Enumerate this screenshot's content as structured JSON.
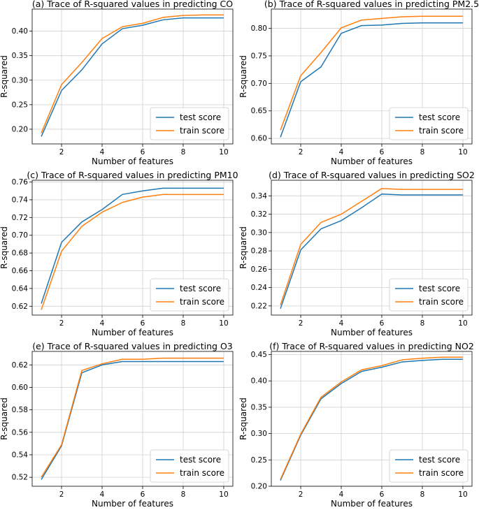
{
  "figure": {
    "colors": {
      "test": "#1f77b4",
      "train": "#ff7f0e",
      "grid": "#d0d0d0",
      "axis": "#000000"
    }
  },
  "chart_data": [
    {
      "type": "line",
      "title": "(a) Trace of R-squared values in predicting CO",
      "xlabel": "Number of features",
      "ylabel": "R-squared",
      "x": [
        1,
        2,
        3,
        4,
        5,
        6,
        7,
        8,
        9,
        10
      ],
      "xlim": [
        0.55,
        10.45
      ],
      "ylim": [
        0.17,
        0.445
      ],
      "xticks": [
        2,
        4,
        6,
        8,
        10
      ],
      "xtick_labels": [
        "2",
        "4",
        "6",
        "8",
        "10"
      ],
      "yticks": [
        0.2,
        0.25,
        0.3,
        0.35,
        0.4
      ],
      "ytick_labels": [
        "0.20",
        "0.25",
        "0.30",
        "0.35",
        "0.40"
      ],
      "legend_position": "lower-right",
      "series": [
        {
          "name": "test score",
          "color": "#1f77b4",
          "values": [
            0.185,
            0.279,
            0.321,
            0.374,
            0.405,
            0.412,
            0.423,
            0.427,
            0.427,
            0.427
          ]
        },
        {
          "name": "train score",
          "color": "#ff7f0e",
          "values": [
            0.192,
            0.291,
            0.336,
            0.385,
            0.409,
            0.416,
            0.428,
            0.432,
            0.433,
            0.433
          ]
        }
      ]
    },
    {
      "type": "line",
      "title": "(b) Trace of R-squared values in predicting PM2.5",
      "xlabel": "Number of features",
      "ylabel": "R-squared",
      "x": [
        1,
        2,
        3,
        4,
        5,
        6,
        7,
        8,
        9,
        10
      ],
      "xlim": [
        0.55,
        10.45
      ],
      "ylim": [
        0.59,
        0.835
      ],
      "xticks": [
        2,
        4,
        6,
        8,
        10
      ],
      "xtick_labels": [
        "2",
        "4",
        "6",
        "8",
        "10"
      ],
      "yticks": [
        0.6,
        0.65,
        0.7,
        0.75,
        0.8
      ],
      "ytick_labels": [
        "0.60",
        "0.65",
        "0.70",
        "0.75",
        "0.80"
      ],
      "legend_position": "lower-right",
      "series": [
        {
          "name": "test score",
          "color": "#1f77b4",
          "values": [
            0.602,
            0.703,
            0.73,
            0.791,
            0.805,
            0.806,
            0.809,
            0.81,
            0.81,
            0.81
          ]
        },
        {
          "name": "train score",
          "color": "#ff7f0e",
          "values": [
            0.615,
            0.714,
            0.756,
            0.801,
            0.815,
            0.818,
            0.821,
            0.822,
            0.822,
            0.822
          ]
        }
      ]
    },
    {
      "type": "line",
      "title": "(c) Trace of R-squared values in predicting PM10",
      "xlabel": "Number of features",
      "ylabel": "R-squared",
      "x": [
        1,
        2,
        3,
        4,
        5,
        6,
        7,
        8,
        9,
        10
      ],
      "xlim": [
        0.55,
        10.45
      ],
      "ylim": [
        0.61,
        0.762
      ],
      "xticks": [
        2,
        4,
        6,
        8,
        10
      ],
      "xtick_labels": [
        "2",
        "4",
        "6",
        "8",
        "10"
      ],
      "yticks": [
        0.62,
        0.64,
        0.66,
        0.68,
        0.7,
        0.72,
        0.74,
        0.76
      ],
      "ytick_labels": [
        "0.62",
        "0.64",
        "0.66",
        "0.68",
        "0.70",
        "0.72",
        "0.74",
        "0.76"
      ],
      "legend_position": "lower-right",
      "series": [
        {
          "name": "test score",
          "color": "#1f77b4",
          "values": [
            0.623,
            0.692,
            0.715,
            0.729,
            0.746,
            0.75,
            0.753,
            0.753,
            0.753,
            0.753
          ]
        },
        {
          "name": "train score",
          "color": "#ff7f0e",
          "values": [
            0.616,
            0.682,
            0.71,
            0.726,
            0.737,
            0.743,
            0.746,
            0.746,
            0.746,
            0.746
          ]
        }
      ]
    },
    {
      "type": "line",
      "title": "(d) Trace of R-squared values in predicting SO2",
      "xlabel": "Number of features",
      "ylabel": "R-squared",
      "x": [
        1,
        2,
        3,
        4,
        5,
        6,
        7,
        8,
        9,
        10
      ],
      "xlim": [
        0.55,
        10.45
      ],
      "ylim": [
        0.21,
        0.357
      ],
      "xticks": [
        2,
        4,
        6,
        8,
        10
      ],
      "xtick_labels": [
        "2",
        "4",
        "6",
        "8",
        "10"
      ],
      "yticks": [
        0.22,
        0.24,
        0.26,
        0.28,
        0.3,
        0.32,
        0.34
      ],
      "ytick_labels": [
        "0.22",
        "0.24",
        "0.26",
        "0.28",
        "0.30",
        "0.32",
        "0.34"
      ],
      "legend_position": "lower-right",
      "series": [
        {
          "name": "test score",
          "color": "#1f77b4",
          "values": [
            0.217,
            0.281,
            0.304,
            0.313,
            0.327,
            0.342,
            0.341,
            0.341,
            0.341,
            0.341
          ]
        },
        {
          "name": "train score",
          "color": "#ff7f0e",
          "values": [
            0.221,
            0.287,
            0.311,
            0.32,
            0.334,
            0.348,
            0.347,
            0.347,
            0.347,
            0.347
          ]
        }
      ]
    },
    {
      "type": "line",
      "title": "(e) Trace of R-squared values in predicting O3",
      "xlabel": "Number of features",
      "ylabel": "R-squared",
      "x": [
        1,
        2,
        3,
        4,
        5,
        6,
        7,
        8,
        9,
        10
      ],
      "xlim": [
        0.55,
        10.45
      ],
      "ylim": [
        0.512,
        0.632
      ],
      "xticks": [
        2,
        4,
        6,
        8,
        10
      ],
      "xtick_labels": [
        "2",
        "4",
        "6",
        "8",
        "10"
      ],
      "yticks": [
        0.52,
        0.54,
        0.56,
        0.58,
        0.6,
        0.62
      ],
      "ytick_labels": [
        "0.52",
        "0.54",
        "0.56",
        "0.58",
        "0.60",
        "0.62"
      ],
      "legend_position": "lower-right",
      "series": [
        {
          "name": "test score",
          "color": "#1f77b4",
          "values": [
            0.518,
            0.548,
            0.613,
            0.62,
            0.623,
            0.623,
            0.623,
            0.623,
            0.623,
            0.623
          ]
        },
        {
          "name": "train score",
          "color": "#ff7f0e",
          "values": [
            0.52,
            0.549,
            0.615,
            0.621,
            0.625,
            0.625,
            0.626,
            0.626,
            0.626,
            0.626
          ]
        }
      ]
    },
    {
      "type": "line",
      "title": "(f) Trace of R-squared values in predicting NO2",
      "xlabel": "Number of features",
      "ylabel": "R-squared",
      "x": [
        1,
        2,
        3,
        4,
        5,
        6,
        7,
        8,
        9,
        10
      ],
      "xlim": [
        0.55,
        10.45
      ],
      "ylim": [
        0.2,
        0.456
      ],
      "xticks": [
        2,
        4,
        6,
        8,
        10
      ],
      "xtick_labels": [
        "2",
        "4",
        "6",
        "8",
        "10"
      ],
      "yticks": [
        0.2,
        0.25,
        0.3,
        0.35,
        0.4,
        0.45
      ],
      "ytick_labels": [
        "0.20",
        "0.25",
        "0.30",
        "0.35",
        "0.40",
        "0.45"
      ],
      "legend_position": "lower-right",
      "series": [
        {
          "name": "test score",
          "color": "#1f77b4",
          "values": [
            0.211,
            0.297,
            0.366,
            0.395,
            0.418,
            0.426,
            0.436,
            0.439,
            0.441,
            0.441
          ]
        },
        {
          "name": "train score",
          "color": "#ff7f0e",
          "values": [
            0.213,
            0.299,
            0.369,
            0.398,
            0.421,
            0.429,
            0.44,
            0.443,
            0.445,
            0.445
          ]
        }
      ]
    }
  ]
}
